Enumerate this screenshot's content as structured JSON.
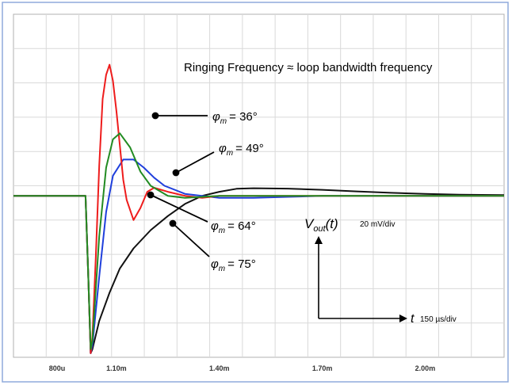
{
  "chart_data": {
    "type": "line",
    "title": "",
    "xlabel": "",
    "ylabel": "",
    "xlim": [
      0.0008,
      0.00223
    ],
    "ylim": [
      -80,
      90
    ],
    "x_ticks": [
      {
        "value": 0.0008,
        "label": "800u"
      },
      {
        "value": 0.0011,
        "label": "1.10m"
      },
      {
        "value": 0.0014,
        "label": "1.40m"
      },
      {
        "value": 0.0017,
        "label": "1.70m"
      },
      {
        "value": 0.002,
        "label": "2.00m"
      }
    ],
    "grid": true,
    "annotations": {
      "ringing": "Ringing Frequency ≈ loop bandwidth frequency",
      "phi": "φ",
      "m_sub": "m",
      "labels": [
        "= 36°",
        "= 49°",
        "= 64°",
        "= 75°"
      ],
      "vout_main": "V",
      "vout_sub": "out",
      "vout_tail": "(t)",
      "vscale": "20 mV/div",
      "t_label": "t",
      "tscale": "150 µs/div"
    },
    "series": [
      {
        "color": "#ee1c1c",
        "x": [
          0.0008,
          0.00101,
          0.001018,
          0.001025,
          0.00103,
          0.00104,
          0.00105,
          0.00106,
          0.00107,
          0.00108,
          0.00109,
          0.0011,
          0.00112,
          0.00113,
          0.00115,
          0.00117,
          0.00119,
          0.00121,
          0.00125,
          0.0013,
          0.00135,
          0.0014,
          0.0015,
          0.0017,
          0.0019,
          0.0021,
          0.00223
        ],
        "y": [
          0,
          0,
          -40,
          -78,
          -70,
          -30,
          15,
          48,
          60,
          65,
          57,
          42,
          8,
          -2,
          -12,
          -6,
          2,
          4,
          2,
          0,
          -1,
          0,
          0,
          0,
          0,
          0,
          0
        ]
      },
      {
        "color": "#228b22",
        "x": [
          0.0008,
          0.00101,
          0.001018,
          0.001025,
          0.00103,
          0.00105,
          0.00107,
          0.00109,
          0.00111,
          0.00114,
          0.00117,
          0.0012,
          0.00125,
          0.0013,
          0.0014,
          0.0015,
          0.0017,
          0.0019,
          0.0021,
          0.00223
        ],
        "y": [
          0,
          0,
          -40,
          -76,
          -72,
          -20,
          14,
          28,
          31,
          24,
          12,
          5,
          0,
          -1,
          0,
          0,
          0,
          0,
          0,
          0
        ]
      },
      {
        "color": "#1f3fdc",
        "x": [
          0.0008,
          0.00101,
          0.001018,
          0.001025,
          0.00103,
          0.00105,
          0.00107,
          0.00109,
          0.00112,
          0.00115,
          0.00118,
          0.00121,
          0.00124,
          0.0013,
          0.0014,
          0.0015,
          0.0016,
          0.0017,
          0.0019,
          0.0021,
          0.00223
        ],
        "y": [
          0,
          0,
          -40,
          -78,
          -74,
          -40,
          -8,
          10,
          18,
          18,
          14,
          9,
          5,
          1,
          -1,
          -1,
          -0.5,
          0,
          0,
          0,
          0
        ]
      },
      {
        "color": "#111111",
        "x": [
          0.0008,
          0.00101,
          0.001018,
          0.001025,
          0.00103,
          0.00105,
          0.00108,
          0.00111,
          0.00115,
          0.0012,
          0.00125,
          0.0013,
          0.00135,
          0.0014,
          0.00145,
          0.0015,
          0.0016,
          0.0017,
          0.0018,
          0.0019,
          0.002,
          0.0021,
          0.00223
        ],
        "y": [
          0,
          0,
          -40,
          -78,
          -76,
          -62,
          -48,
          -36,
          -26,
          -17,
          -10,
          -4,
          0,
          2,
          3.5,
          3.8,
          3.6,
          3,
          2.2,
          1.5,
          1,
          0.6,
          0.4
        ]
      }
    ]
  }
}
